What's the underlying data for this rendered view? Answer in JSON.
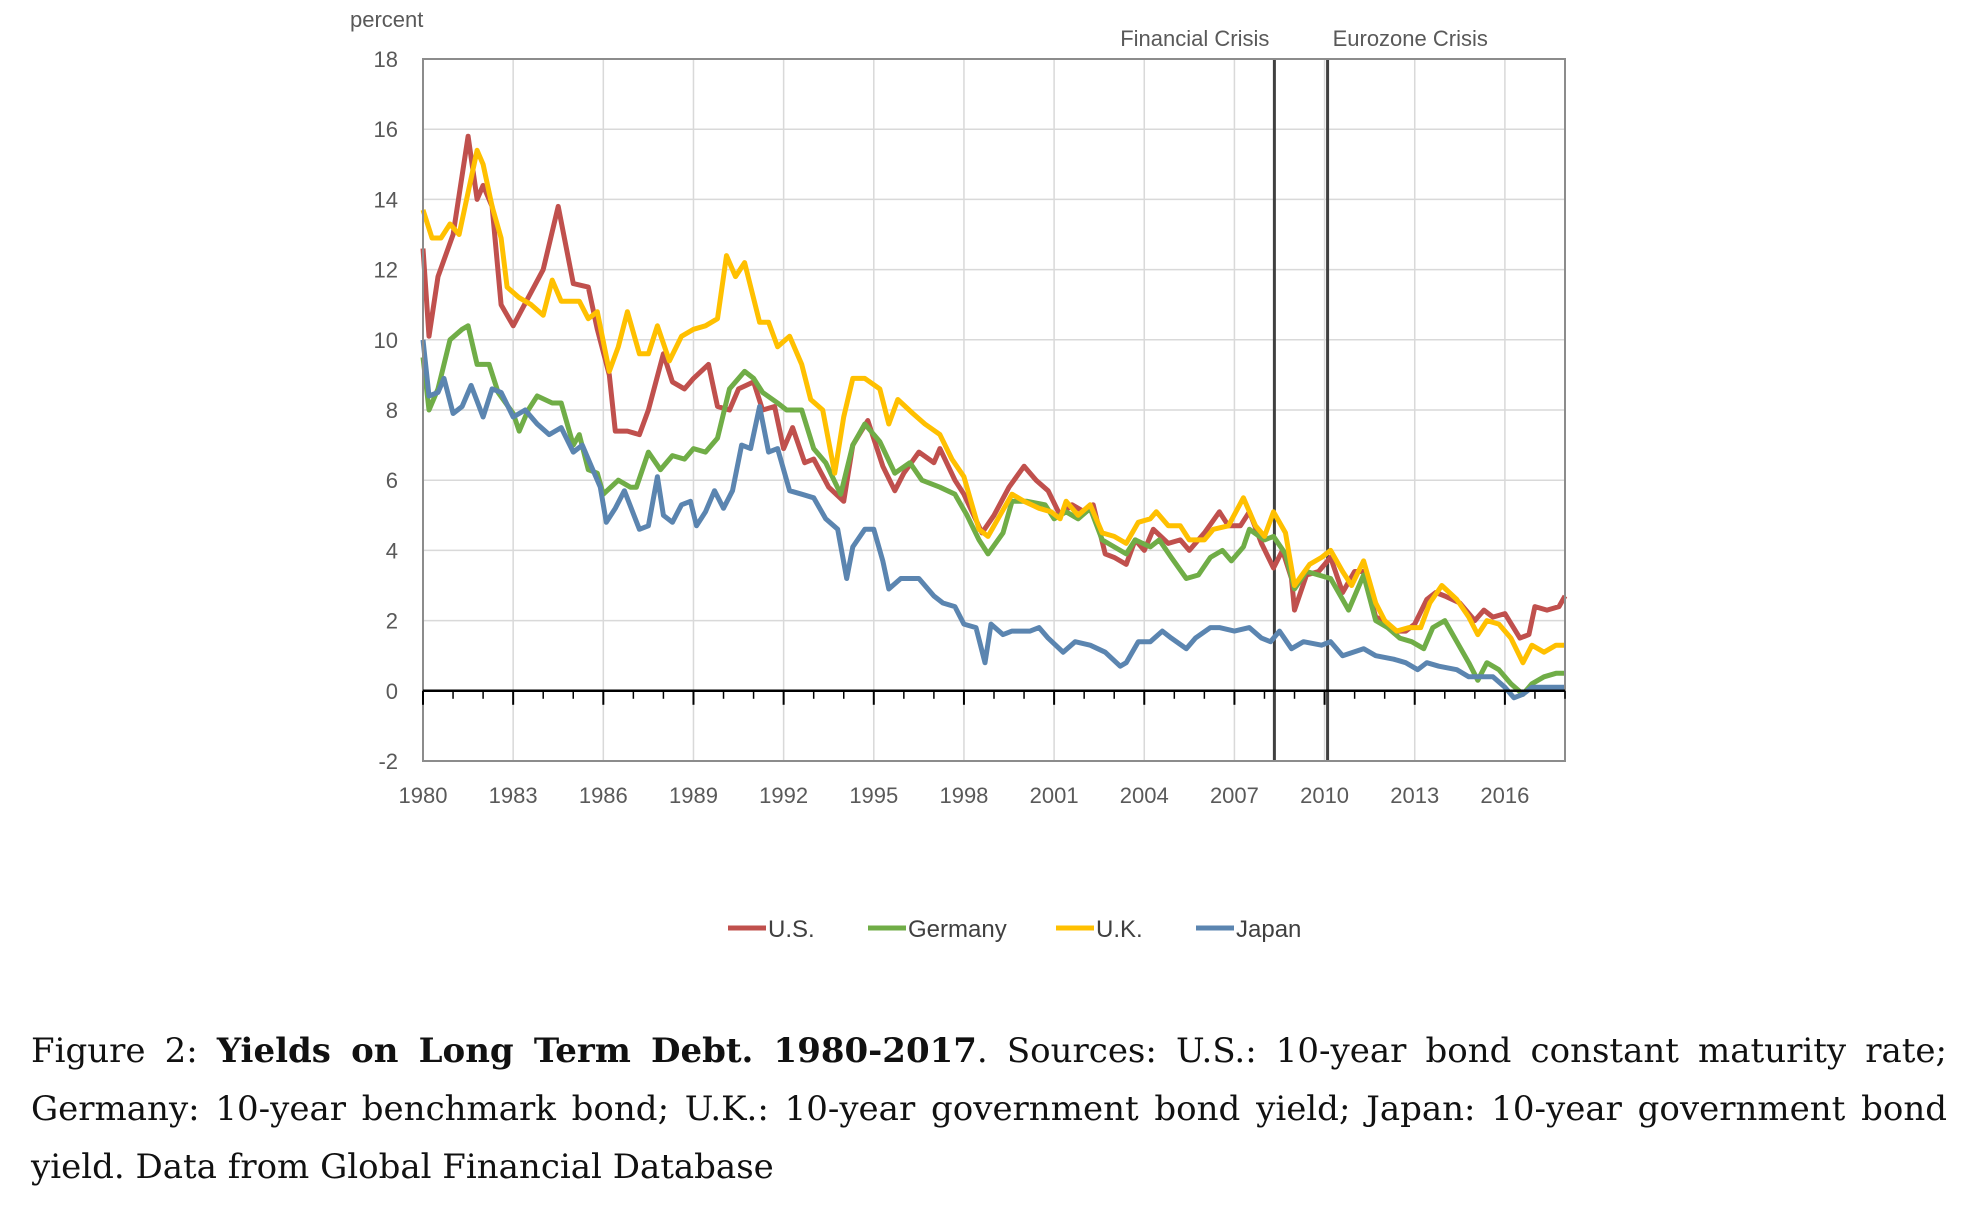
{
  "chart_data": {
    "type": "line",
    "ylabel": "percent",
    "ylim": [
      -2,
      18
    ],
    "yticks": [
      "18",
      "16",
      "14",
      "12",
      "10",
      "8",
      "6",
      "4",
      "2",
      "0",
      "-2"
    ],
    "xlim": [
      1980,
      2018
    ],
    "xticks": [
      "1980",
      "1983",
      "1986",
      "1989",
      "1992",
      "1995",
      "1998",
      "2001",
      "2004",
      "2007",
      "2010",
      "2013",
      "2016"
    ],
    "grid": true,
    "legend_placement": "bottom",
    "annotations": [
      {
        "label": "Financial Crisis",
        "x": 2008.33
      },
      {
        "label": "Eurozone Crisis",
        "x": 2010.1
      }
    ],
    "series": [
      {
        "name": "U.S.",
        "color": "#C0504D",
        "x": [
          1980,
          1980.2,
          1980.5,
          1981,
          1981.5,
          1981.8,
          1982,
          1982.3,
          1982.6,
          1983,
          1983.5,
          1984,
          1984.5,
          1985,
          1985.5,
          1985.8,
          1986.2,
          1986.4,
          1986.8,
          1987.2,
          1987.5,
          1988,
          1988.3,
          1988.7,
          1989,
          1989.5,
          1989.8,
          1990.2,
          1990.5,
          1991,
          1991.3,
          1991.7,
          1992,
          1992.3,
          1992.7,
          1993,
          1993.5,
          1994,
          1994.3,
          1994.8,
          1995.3,
          1995.7,
          1996,
          1996.5,
          1997,
          1997.2,
          1997.7,
          1998,
          1998.6,
          1999,
          1999.5,
          2000,
          2000.4,
          2000.8,
          2001.2,
          2001.6,
          2002,
          2002.3,
          2002.7,
          2003,
          2003.4,
          2003.7,
          2004,
          2004.3,
          2004.8,
          2005.2,
          2005.5,
          2006,
          2006.5,
          2006.8,
          2007.2,
          2007.5,
          2007.9,
          2008.3,
          2008.6,
          2008.9,
          2009,
          2009.4,
          2009.8,
          2010.2,
          2010.6,
          2011,
          2011.3,
          2011.7,
          2012,
          2012.3,
          2012.7,
          2013,
          2013.4,
          2013.7,
          2014,
          2014.5,
          2015,
          2015.3,
          2015.6,
          2016,
          2016.5,
          2016.8,
          2017,
          2017.4,
          2017.8,
          2018
        ],
        "values": [
          12.6,
          10.1,
          11.8,
          13,
          15.8,
          14,
          14.4,
          13.8,
          11,
          10.4,
          11.2,
          12,
          13.8,
          11.6,
          11.5,
          10.3,
          9,
          7.4,
          7.4,
          7.3,
          8,
          9.6,
          8.8,
          8.6,
          8.9,
          9.3,
          8.1,
          8,
          8.6,
          8.8,
          8,
          8.1,
          6.9,
          7.5,
          6.5,
          6.6,
          5.8,
          5.4,
          7,
          7.7,
          6.4,
          5.7,
          6.2,
          6.8,
          6.5,
          6.9,
          6,
          5.6,
          4.5,
          5,
          5.8,
          6.4,
          6,
          5.7,
          5,
          5.3,
          5.1,
          5.3,
          3.9,
          3.8,
          3.6,
          4.3,
          4,
          4.6,
          4.2,
          4.3,
          4,
          4.5,
          5.1,
          4.7,
          4.7,
          5.1,
          4.2,
          3.5,
          4,
          3.2,
          2.3,
          3.3,
          3.4,
          3.8,
          2.8,
          3.4,
          3.4,
          2.1,
          2,
          1.7,
          1.7,
          1.9,
          2.6,
          2.8,
          2.7,
          2.5,
          2,
          2.3,
          2.1,
          2.2,
          1.5,
          1.6,
          2.4,
          2.3,
          2.4,
          2.7
        ]
      },
      {
        "name": "Germany",
        "color": "#70AD47",
        "x": [
          1980,
          1980.2,
          1980.5,
          1980.9,
          1981.3,
          1981.5,
          1981.8,
          1982.2,
          1982.5,
          1983,
          1983.2,
          1983.5,
          1983.8,
          1984.3,
          1984.6,
          1985,
          1985.2,
          1985.5,
          1985.8,
          1986,
          1986.5,
          1986.9,
          1987.1,
          1987.5,
          1987.9,
          1988.3,
          1988.7,
          1989,
          1989.4,
          1989.8,
          1990.2,
          1990.7,
          1991,
          1991.3,
          1991.8,
          1992.1,
          1992.6,
          1993,
          1993.4,
          1993.9,
          1994.3,
          1994.7,
          1995.2,
          1995.7,
          1996.2,
          1996.6,
          1997.2,
          1997.7,
          1998.1,
          1998.5,
          1998.8,
          1999.3,
          1999.6,
          2000.1,
          2000.7,
          2001,
          2001.4,
          2001.8,
          2002.2,
          2002.6,
          2003,
          2003.4,
          2003.7,
          2004.2,
          2004.5,
          2004.9,
          2005.4,
          2005.8,
          2006.2,
          2006.6,
          2006.9,
          2007.3,
          2007.5,
          2008,
          2008.3,
          2008.7,
          2009,
          2009.4,
          2009.8,
          2010.2,
          2010.6,
          2010.8,
          2011.3,
          2011.7,
          2012.1,
          2012.5,
          2012.9,
          2013.3,
          2013.6,
          2014,
          2014.4,
          2014.8,
          2015.1,
          2015.4,
          2015.8,
          2016.2,
          2016.6,
          2016.9,
          2017.3,
          2017.7,
          2018
        ],
        "values": [
          9.5,
          8,
          8.6,
          10,
          10.3,
          10.4,
          9.3,
          9.3,
          8.5,
          7.9,
          7.4,
          8,
          8.4,
          8.2,
          8.2,
          7,
          7.3,
          6.3,
          6.2,
          5.6,
          6,
          5.8,
          5.8,
          6.8,
          6.3,
          6.7,
          6.6,
          6.9,
          6.8,
          7.2,
          8.6,
          9.1,
          8.9,
          8.5,
          8.2,
          8,
          8,
          6.9,
          6.5,
          5.6,
          7,
          7.6,
          7.1,
          6.2,
          6.5,
          6,
          5.8,
          5.6,
          5,
          4.3,
          3.9,
          4.5,
          5.4,
          5.4,
          5.3,
          4.9,
          5.1,
          4.9,
          5.2,
          4.3,
          4.1,
          3.9,
          4.3,
          4.1,
          4.3,
          3.8,
          3.2,
          3.3,
          3.8,
          4,
          3.7,
          4.1,
          4.6,
          4.3,
          4.4,
          3.9,
          2.9,
          3.4,
          3.3,
          3.2,
          2.6,
          2.3,
          3.3,
          2,
          1.8,
          1.5,
          1.4,
          1.2,
          1.8,
          2,
          1.4,
          0.8,
          0.3,
          0.8,
          0.6,
          0.2,
          -0.1,
          0.2,
          0.4,
          0.5,
          0.5
        ]
      },
      {
        "name": "U.K.",
        "color": "#FFC000",
        "x": [
          1980,
          1980.3,
          1980.6,
          1980.9,
          1981.2,
          1981.5,
          1981.8,
          1982,
          1982.3,
          1982.6,
          1982.8,
          1983.2,
          1983.6,
          1984,
          1984.3,
          1984.6,
          1985.2,
          1985.5,
          1985.8,
          1986.2,
          1986.5,
          1986.8,
          1987.2,
          1987.5,
          1987.8,
          1988.2,
          1988.6,
          1989,
          1989.4,
          1989.8,
          1990.1,
          1990.4,
          1990.7,
          1991.2,
          1991.5,
          1991.8,
          1992.2,
          1992.6,
          1992.9,
          1993.3,
          1993.7,
          1994,
          1994.3,
          1994.7,
          1995.2,
          1995.5,
          1995.8,
          1996.3,
          1996.7,
          1997.2,
          1997.6,
          1998,
          1998.5,
          1998.8,
          1999.2,
          1999.6,
          2000,
          2000.5,
          2000.9,
          2001.2,
          2001.4,
          2001.8,
          2002.2,
          2002.6,
          2003,
          2003.4,
          2003.8,
          2004.2,
          2004.4,
          2004.8,
          2005.2,
          2005.5,
          2006,
          2006.3,
          2006.8,
          2007.3,
          2007.7,
          2008,
          2008.3,
          2008.7,
          2009,
          2009.5,
          2009.9,
          2010.2,
          2010.6,
          2010.9,
          2011.3,
          2011.7,
          2012,
          2012.4,
          2012.8,
          2013.2,
          2013.5,
          2013.9,
          2014.4,
          2014.8,
          2015.1,
          2015.4,
          2015.8,
          2016.2,
          2016.6,
          2016.9,
          2017.3,
          2017.7,
          2018
        ],
        "values": [
          13.7,
          12.9,
          12.9,
          13.3,
          13,
          14.2,
          15.4,
          15,
          13.8,
          12.9,
          11.5,
          11.2,
          11,
          10.7,
          11.7,
          11.1,
          11.1,
          10.6,
          10.8,
          9.1,
          9.8,
          10.8,
          9.6,
          9.6,
          10.4,
          9.4,
          10.1,
          10.3,
          10.4,
          10.6,
          12.4,
          11.8,
          12.2,
          10.5,
          10.5,
          9.8,
          10.1,
          9.3,
          8.3,
          8,
          6.2,
          7.8,
          8.9,
          8.9,
          8.6,
          7.6,
          8.3,
          7.9,
          7.6,
          7.3,
          6.6,
          6.1,
          4.6,
          4.4,
          5,
          5.6,
          5.4,
          5.2,
          5.1,
          4.9,
          5.4,
          5,
          5.3,
          4.5,
          4.4,
          4.2,
          4.8,
          4.9,
          5.1,
          4.7,
          4.7,
          4.3,
          4.3,
          4.6,
          4.7,
          5.5,
          4.7,
          4.4,
          5.1,
          4.5,
          3,
          3.6,
          3.8,
          4,
          3.4,
          3,
          3.7,
          2.5,
          2,
          1.7,
          1.8,
          1.8,
          2.5,
          3,
          2.6,
          2.1,
          1.6,
          2,
          1.9,
          1.5,
          0.8,
          1.3,
          1.1,
          1.3,
          1.3
        ]
      },
      {
        "name": "Japan",
        "color": "#5B85B0",
        "x": [
          1980,
          1980.2,
          1980.5,
          1980.7,
          1981,
          1981.3,
          1981.6,
          1982,
          1982.3,
          1982.6,
          1983,
          1983.4,
          1983.8,
          1984.2,
          1984.6,
          1985,
          1985.3,
          1985.6,
          1985.9,
          1986.1,
          1986.4,
          1986.7,
          1987.2,
          1987.5,
          1987.8,
          1988,
          1988.3,
          1988.6,
          1988.9,
          1989.1,
          1989.4,
          1989.7,
          1990,
          1990.3,
          1990.6,
          1990.9,
          1991.2,
          1991.5,
          1991.8,
          1992.2,
          1992.6,
          1993,
          1993.4,
          1993.8,
          1994.1,
          1994.3,
          1994.7,
          1995,
          1995.3,
          1995.5,
          1995.9,
          1996.5,
          1997,
          1997.3,
          1997.7,
          1998,
          1998.4,
          1998.7,
          1998.9,
          1999.3,
          1999.6,
          2000.2,
          2000.5,
          2000.8,
          2001.3,
          2001.7,
          2002.2,
          2002.7,
          2003.2,
          2003.4,
          2003.8,
          2004.2,
          2004.6,
          2004.9,
          2005.4,
          2005.7,
          2006.2,
          2006.5,
          2007,
          2007.5,
          2007.9,
          2008.2,
          2008.5,
          2008.9,
          2009.3,
          2009.9,
          2010.2,
          2010.6,
          2011.3,
          2011.7,
          2012.3,
          2012.7,
          2013.1,
          2013.4,
          2013.8,
          2014.4,
          2014.8,
          2015.2,
          2015.6,
          2016,
          2016.3,
          2016.6,
          2016.9,
          2018
        ],
        "values": [
          10,
          8.4,
          8.5,
          8.9,
          7.9,
          8.1,
          8.7,
          7.8,
          8.6,
          8.5,
          7.8,
          8,
          7.6,
          7.3,
          7.5,
          6.8,
          7,
          6.4,
          5.8,
          4.8,
          5.2,
          5.7,
          4.6,
          4.7,
          6.1,
          5,
          4.8,
          5.3,
          5.4,
          4.7,
          5.1,
          5.7,
          5.2,
          5.7,
          7,
          6.9,
          8.1,
          6.8,
          6.9,
          5.7,
          5.6,
          5.5,
          4.9,
          4.6,
          3.2,
          4.1,
          4.6,
          4.6,
          3.7,
          2.9,
          3.2,
          3.2,
          2.7,
          2.5,
          2.4,
          1.9,
          1.8,
          0.8,
          1.9,
          1.6,
          1.7,
          1.7,
          1.8,
          1.5,
          1.1,
          1.4,
          1.3,
          1.1,
          0.7,
          0.8,
          1.4,
          1.4,
          1.7,
          1.5,
          1.2,
          1.5,
          1.8,
          1.8,
          1.7,
          1.8,
          1.5,
          1.4,
          1.7,
          1.2,
          1.4,
          1.3,
          1.4,
          1,
          1.2,
          1,
          0.9,
          0.8,
          0.6,
          0.8,
          0.7,
          0.6,
          0.4,
          0.4,
          0.4,
          0.1,
          -0.2,
          -0.1,
          0.1,
          0.1
        ]
      }
    ]
  },
  "caption": {
    "prefix": "Figure 2: ",
    "title": "Yields on Long Term Debt.  1980-2017",
    "body": ". Sources: U.S.: 10-year bond constant maturity rate; Germany: 10-year benchmark bond; U.K.: 10-year government bond yield; Japan: 10-year government bond yield. Data from Global Financial Database"
  }
}
